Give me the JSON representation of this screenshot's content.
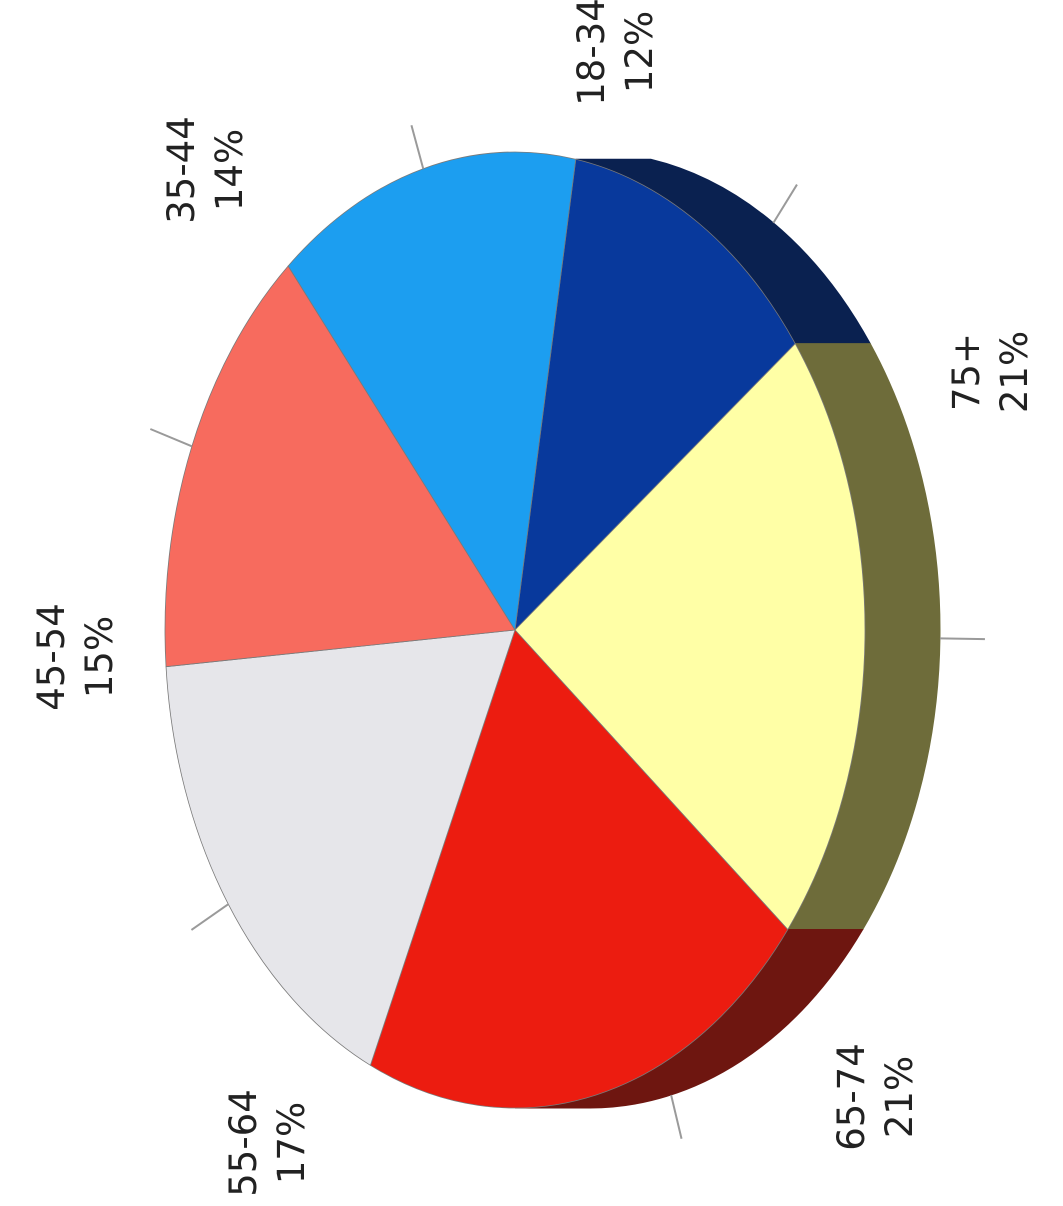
{
  "chart_data": {
    "type": "pie",
    "style": "3d, rotated 90 degrees counter-clockwise",
    "slices": [
      {
        "label": "18-34",
        "value": 12,
        "value_label": "12%",
        "color": "#08399C",
        "side_color": "#0A2150"
      },
      {
        "label": "75+",
        "value": 21,
        "value_label": "21%",
        "color": "#FFFFA6",
        "side_color": "#6E6C3A"
      },
      {
        "label": "65-74",
        "value": 21,
        "value_label": "21%",
        "color": "#EC1C10",
        "side_color": "#6E1610"
      },
      {
        "label": "55-64",
        "value": 17,
        "value_label": "17%",
        "color": "#E6E6EA",
        "side_color": "#B0B0B4"
      },
      {
        "label": "45-54",
        "value": 15,
        "value_label": "15%",
        "color": "#F76B5E",
        "side_color": "#8A3A33"
      },
      {
        "label": "35-44",
        "value": 14,
        "value_label": "14%",
        "color": "#1C9EF0",
        "side_color": "#0F5A8A"
      }
    ]
  }
}
